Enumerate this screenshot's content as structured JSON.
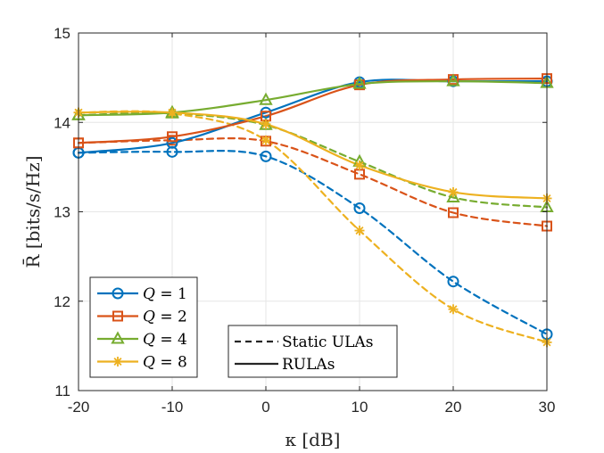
{
  "chart_data": {
    "type": "line",
    "title": "",
    "xlabel": "κ [dB]",
    "ylabel": "R̄ [bits/s/Hz]",
    "xlim": [
      -20,
      30
    ],
    "ylim": [
      11,
      15
    ],
    "x_ticks": [
      -20,
      -10,
      0,
      10,
      20,
      30
    ],
    "x_tick_labels": [
      "-20",
      "-10",
      "0",
      "10",
      "20",
      "30"
    ],
    "y_ticks": [
      11,
      12,
      13,
      14,
      15
    ],
    "y_tick_labels": [
      "11",
      "12",
      "13",
      "14",
      "15"
    ],
    "grid": true,
    "x": [
      -20,
      -10,
      0,
      10,
      20,
      30
    ],
    "series": [
      {
        "name": "Q = 1",
        "q_value": "1",
        "type": "RULAs",
        "color": "#0072BD",
        "marker": "circle",
        "values": [
          13.66,
          13.77,
          14.11,
          14.45,
          14.46,
          14.46
        ]
      },
      {
        "name": "Q = 2",
        "q_value": "2",
        "type": "RULAs",
        "color": "#D95319",
        "marker": "square",
        "values": [
          13.77,
          13.84,
          14.07,
          14.42,
          14.48,
          14.49
        ]
      },
      {
        "name": "Q = 4",
        "q_value": "4",
        "type": "RULAs",
        "color": "#77AC30",
        "marker": "triangle",
        "values": [
          14.08,
          14.11,
          14.25,
          14.43,
          14.46,
          14.44
        ]
      },
      {
        "name": "Q = 8",
        "q_value": "8",
        "type": "RULAs",
        "color": "#EDB120",
        "marker": "asterisk",
        "values": [
          14.11,
          14.11,
          13.98,
          13.52,
          13.22,
          13.15
        ]
      },
      {
        "name": "Q = 1",
        "q_value": "1",
        "type": "Static ULAs",
        "color": "#0072BD",
        "marker": "circle",
        "values": [
          13.66,
          13.67,
          13.62,
          13.04,
          12.22,
          11.63
        ]
      },
      {
        "name": "Q = 2",
        "q_value": "2",
        "type": "Static ULAs",
        "color": "#D95319",
        "marker": "square",
        "values": [
          13.77,
          13.8,
          13.79,
          13.42,
          12.99,
          12.84
        ]
      },
      {
        "name": "Q = 4",
        "q_value": "4",
        "type": "Static ULAs",
        "color": "#77AC30",
        "marker": "triangle",
        "values": [
          14.08,
          14.1,
          13.97,
          13.56,
          13.16,
          13.05
        ]
      },
      {
        "name": "Q = 8",
        "q_value": "8",
        "type": "Static ULAs",
        "color": "#EDB120",
        "marker": "asterisk",
        "values": [
          14.11,
          14.1,
          13.8,
          12.79,
          11.91,
          11.54
        ]
      }
    ],
    "legend_q": [
      {
        "prefix": "Q",
        "equals": " = ",
        "value": "1",
        "color": "#0072BD",
        "marker": "circle"
      },
      {
        "prefix": "Q",
        "equals": " = ",
        "value": "2",
        "color": "#D95319",
        "marker": "square"
      },
      {
        "prefix": "Q",
        "equals": " = ",
        "value": "4",
        "color": "#77AC30",
        "marker": "triangle"
      },
      {
        "prefix": "Q",
        "equals": " = ",
        "value": "8",
        "color": "#EDB120",
        "marker": "asterisk"
      }
    ],
    "legend_line_style": [
      {
        "label": "Static ULAs",
        "dash": "dashed"
      },
      {
        "label": "RULAs",
        "dash": "solid"
      }
    ],
    "legend_placement": "bottom-left and bottom-center"
  }
}
